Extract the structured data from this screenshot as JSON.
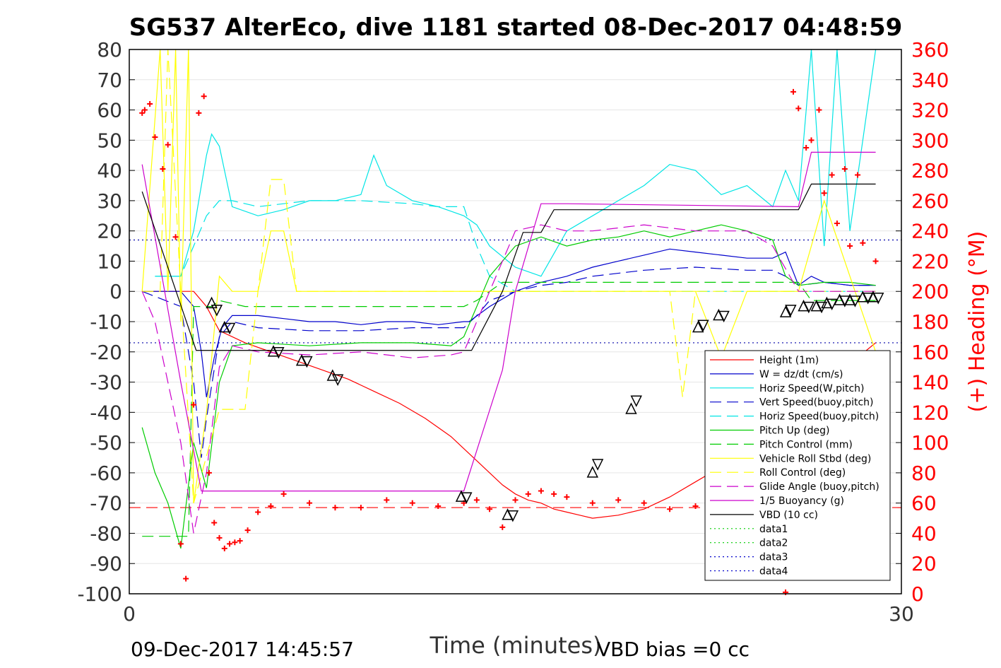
{
  "chart_data": {
    "type": "line",
    "title": "SG537 AlterEco, dive 1181 started 08-Dec-2017 04:48:59",
    "xlabel": "Time (minutes)",
    "ylabel_right": "(+) Heading (°M)",
    "footer_left": "09-Dec-2017 14:45:57",
    "footer_right": "VBD bias =0 cc",
    "xlim": [
      0,
      30
    ],
    "ylim": [
      -100,
      80
    ],
    "ylim_right": [
      0,
      360
    ],
    "x_ticks": [
      0,
      30
    ],
    "y_ticks": [
      80,
      70,
      60,
      50,
      40,
      30,
      20,
      10,
      0,
      -10,
      -20,
      -30,
      -40,
      -50,
      -60,
      -70,
      -80,
      -90,
      -100
    ],
    "y_ticks_right": [
      360,
      340,
      320,
      300,
      280,
      260,
      240,
      220,
      200,
      180,
      160,
      140,
      120,
      100,
      80,
      60,
      40,
      20,
      0
    ],
    "grid": true,
    "legend_position": "bottom-right",
    "reference_lines": [
      17,
      -17
    ],
    "heading_mean": 57,
    "colors": {
      "heading": "#ff0000",
      "right_axis": "#ff0000"
    },
    "series": [
      {
        "name": "Height (1m)",
        "color": "#ff0000",
        "style": "solid",
        "x": [
          0.5,
          2.5,
          3.0,
          3.5,
          4.5,
          5.5,
          6.5,
          7.5,
          8.5,
          9.5,
          10.5,
          11.5,
          12.5,
          13.0,
          13.5,
          14.0,
          14.5,
          15.0,
          15.5,
          16.0,
          16.5,
          17.0,
          17.5,
          18.0,
          19.0,
          20.0,
          21.0,
          22.0,
          23.0,
          24.0,
          25.0,
          26.0,
          27.0,
          28.0,
          29.0
        ],
        "y": [
          0,
          0,
          -5,
          -13,
          -17,
          -20,
          -23,
          -26,
          -29,
          -33,
          -37,
          -42,
          -48,
          -52,
          -56,
          -60,
          -64,
          -67,
          -69,
          -70,
          -72,
          -73,
          -74,
          -75,
          -74,
          -72,
          -68,
          -63,
          -58,
          -52,
          -45,
          -38,
          -31,
          -24,
          -17
        ]
      },
      {
        "name": "W = dz/dt (cm/s)",
        "color": "#0000cc",
        "style": "solid",
        "x": [
          0.5,
          2.0,
          2.5,
          2.8,
          3.0,
          3.3,
          3.6,
          4.0,
          5.0,
          6.0,
          7.0,
          8.0,
          9.0,
          10.0,
          11.0,
          12.0,
          13.0,
          13.2,
          14.0,
          15.0,
          16.0,
          17.0,
          18.0,
          19.0,
          20.0,
          21.0,
          22.0,
          23.0,
          24.0,
          25.0,
          25.5,
          26.0,
          26.5,
          27.0,
          28.0,
          29.0
        ],
        "y": [
          0,
          0,
          -5,
          -20,
          -35,
          -22,
          -12,
          -8,
          -8,
          -9,
          -10,
          -10,
          -11,
          -10,
          -10,
          -11,
          -10,
          -10,
          -5,
          0,
          3,
          5,
          8,
          10,
          12,
          14,
          13,
          12,
          11,
          11,
          13,
          2,
          5,
          3,
          2,
          2
        ]
      },
      {
        "name": "Horiz Speed(W,pitch)",
        "color": "#00e5e5",
        "style": "solid",
        "x": [
          1.0,
          2.0,
          2.5,
          3.0,
          3.2,
          3.5,
          4.0,
          5.0,
          6.0,
          7.0,
          8.0,
          9.0,
          9.5,
          10.0,
          11.0,
          12.0,
          13.0,
          13.5,
          14.0,
          15.0,
          16.0,
          17.0,
          18.0,
          19.0,
          20.0,
          21.0,
          22.0,
          23.0,
          24.0,
          25.0,
          25.5,
          26.0,
          26.5,
          27.0,
          27.5,
          28.0,
          29.0
        ],
        "y": [
          5,
          5,
          20,
          45,
          52,
          48,
          28,
          25,
          27,
          30,
          30,
          32,
          45,
          35,
          30,
          28,
          25,
          22,
          15,
          8,
          5,
          20,
          25,
          30,
          35,
          42,
          40,
          32,
          35,
          28,
          40,
          30,
          80,
          15,
          80,
          20,
          80
        ]
      },
      {
        "name": "Vert Speed(buoy,pitch)",
        "color": "#0000cc",
        "style": "dashed",
        "x": [
          0.5,
          2.0,
          2.5,
          2.8,
          3.0,
          3.5,
          4.0,
          5.0,
          7.0,
          9.0,
          11.0,
          13.0,
          13.5,
          14.0,
          15.0,
          16.0,
          17.0,
          18.0,
          20.0,
          22.0,
          24.0,
          25.0,
          25.5,
          26.0,
          27.0,
          28.0,
          29.0
        ],
        "y": [
          0,
          -5,
          -30,
          -55,
          -42,
          -15,
          -10,
          -12,
          -13,
          -13,
          -12,
          -12,
          -8,
          -3,
          0,
          2,
          3,
          5,
          7,
          8,
          7,
          7,
          5,
          2,
          3,
          2,
          2
        ]
      },
      {
        "name": "Horiz Speed(buoy,pitch)",
        "color": "#00e5e5",
        "style": "dashed",
        "x": [
          1.0,
          2.0,
          2.5,
          3.0,
          3.5,
          4.0,
          5.0,
          7.0,
          9.0,
          11.0,
          12.0,
          13.0,
          13.5,
          14.0,
          15.0,
          16.0,
          17.0,
          18.0,
          20.0,
          22.0,
          24.0,
          25.0,
          26.0,
          27.0,
          28.0,
          29.0
        ],
        "y": [
          5,
          5,
          15,
          25,
          30,
          30,
          28,
          30,
          30,
          29,
          28,
          28,
          15,
          5,
          0,
          0,
          0,
          0,
          0,
          0,
          0,
          0,
          0,
          0,
          0,
          0
        ]
      },
      {
        "name": "Pitch Up (deg)",
        "color": "#00cc00",
        "style": "solid",
        "x": [
          0.5,
          1.0,
          1.5,
          2.0,
          2.5,
          3.0,
          3.5,
          4.0,
          5.0,
          7.0,
          9.0,
          11.0,
          12.5,
          13.0,
          13.5,
          14.0,
          15.0,
          16.0,
          17.0,
          18.0,
          19.0,
          20.0,
          21.0,
          22.0,
          23.0,
          24.0,
          25.0,
          25.5,
          26.0,
          27.0,
          28.0,
          29.0
        ],
        "y": [
          -45,
          -60,
          -70,
          -85,
          -50,
          -65,
          -30,
          -18,
          -17,
          -18,
          -17,
          -17,
          -18,
          -15,
          -5,
          5,
          15,
          18,
          15,
          17,
          18,
          20,
          18,
          20,
          22,
          20,
          17,
          5,
          2,
          3,
          3,
          2
        ]
      },
      {
        "name": "Pitch Control (mm)",
        "color": "#00cc00",
        "style": "dashed",
        "x": [
          0.5,
          2.3,
          2.5,
          3.2,
          3.5,
          4.5,
          13.0,
          13.5,
          14.5,
          26.0,
          26.5,
          29.0
        ],
        "y": [
          -81,
          -81,
          -5,
          -5,
          -3,
          -5,
          -5,
          -3,
          3,
          3,
          -3,
          -3
        ]
      },
      {
        "name": "Vehicle Roll Stbd (deg)",
        "color": "#ffff00",
        "style": "solid",
        "x": [
          0.5,
          1.2,
          1.5,
          1.8,
          2.0,
          2.3,
          2.5,
          3.0,
          3.5,
          4.0,
          5.0,
          5.5,
          6.0,
          6.5,
          7.0,
          8.0,
          9.0,
          10.0,
          11.0,
          12.0,
          13.0,
          14.0,
          15.0,
          16.0,
          17.0,
          18.0,
          19.0,
          20.0,
          21.0,
          22.0,
          23.0,
          24.0,
          25.0,
          26.0,
          27.0,
          28.0,
          29.0
        ],
        "y": [
          0,
          80,
          0,
          80,
          -10,
          80,
          -70,
          -40,
          5,
          0,
          0,
          20,
          20,
          0,
          0,
          0,
          0,
          0,
          0,
          0,
          0,
          0,
          0,
          0,
          0,
          0,
          0,
          0,
          0,
          0,
          -22,
          0,
          0,
          0,
          30,
          5,
          -20
        ]
      },
      {
        "name": "Roll Control (deg)",
        "color": "#ffff00",
        "style": "dashed",
        "x": [
          0.5,
          1.2,
          1.5,
          2.0,
          2.5,
          3.5,
          4.5,
          5.0,
          5.5,
          6.0,
          6.5,
          7.0,
          14.0,
          20.0,
          21.0,
          21.5,
          22.0,
          27.0,
          28.0,
          29.0
        ],
        "y": [
          0,
          0,
          80,
          0,
          -70,
          -39,
          -39,
          0,
          37,
          37,
          0,
          0,
          0,
          0,
          0,
          -35,
          0,
          0,
          0,
          0
        ]
      },
      {
        "name": "Glide Angle (buoy,pitch)",
        "color": "#cc00cc",
        "style": "dashed",
        "x": [
          0.5,
          1.0,
          2.0,
          2.5,
          3.0,
          3.5,
          4.0,
          5.0,
          7.0,
          9.0,
          11.0,
          12.5,
          13.0,
          14.0,
          15.0,
          16.0,
          17.0,
          18.0,
          20.0,
          22.0,
          24.0,
          25.0,
          26.0,
          27.0,
          28.0,
          29.0
        ],
        "y": [
          0,
          -10,
          -50,
          -80,
          -60,
          -25,
          -18,
          -20,
          -21,
          -20,
          -22,
          -21,
          -20,
          0,
          20,
          22,
          20,
          20,
          22,
          20,
          20,
          15,
          0,
          0,
          0,
          0
        ]
      },
      {
        "name": "1/5 Buoyancy (g)",
        "color": "#cc00cc",
        "style": "solid",
        "x": [
          0.5,
          2.0,
          2.8,
          3.0,
          13.0,
          14.5,
          15.0,
          16.0,
          17.0,
          26.0,
          26.5,
          29.0
        ],
        "y": [
          42,
          -30,
          -66,
          -66,
          -66,
          -26,
          0,
          29,
          29,
          28,
          46,
          46
        ]
      },
      {
        "name": "VBD (10 cc)",
        "color": "#000000",
        "style": "solid",
        "x": [
          0.5,
          2.6,
          3.5,
          4.0,
          13.0,
          13.3,
          14.5,
          15.3,
          16.0,
          16.5,
          17.0,
          26.0,
          26.5,
          29.0
        ],
        "y": [
          33,
          -19.5,
          -19.5,
          -19.5,
          -19.5,
          -19.5,
          0,
          19.5,
          19.5,
          27,
          27,
          27,
          35.5,
          35.5
        ]
      },
      {
        "name": "data1",
        "color": "#00cc00",
        "style": "dotted",
        "x": [],
        "y": []
      },
      {
        "name": "data2",
        "color": "#00cc00",
        "style": "dotted",
        "x": [],
        "y": []
      },
      {
        "name": "data3",
        "color": "#0000cc",
        "style": "dotted",
        "x": [],
        "y": []
      },
      {
        "name": "data4",
        "color": "#0000cc",
        "style": "dotted",
        "x": [],
        "y": []
      }
    ],
    "heading_points": {
      "x": [
        0.5,
        0.6,
        0.8,
        1.0,
        1.3,
        1.5,
        1.8,
        2.0,
        2.2,
        2.5,
        2.7,
        2.9,
        3.1,
        3.3,
        3.5,
        3.7,
        3.9,
        4.1,
        4.3,
        4.6,
        5.0,
        5.5,
        6.0,
        7.0,
        8.0,
        9.0,
        10.0,
        11.0,
        12.0,
        13.0,
        13.5,
        14.0,
        14.5,
        15.0,
        15.5,
        16.0,
        16.5,
        17.0,
        18.0,
        19.0,
        20.0,
        21.0,
        22.0,
        23.0,
        24.0,
        25.0,
        25.5,
        25.8,
        26.0,
        26.3,
        26.5,
        26.8,
        27.0,
        27.3,
        27.5,
        27.8,
        28.0,
        28.3,
        28.5,
        29.0
      ],
      "y": [
        318,
        320,
        324,
        302,
        281,
        297,
        236,
        33,
        10,
        125,
        318,
        329,
        80,
        47,
        37,
        30,
        33,
        34,
        35,
        42,
        54,
        58,
        66,
        60,
        57,
        57,
        62,
        60,
        58,
        60,
        62,
        56,
        44,
        62,
        66,
        68,
        66,
        64,
        60,
        62,
        60,
        56,
        58,
        56,
        54,
        50,
        1,
        332,
        321,
        295,
        300,
        320,
        265,
        277,
        245,
        281,
        230,
        277,
        232,
        220
      ]
    },
    "markers": {
      "x": [
        3.2,
        3.4,
        3.7,
        3.9,
        5.6,
        5.8,
        6.7,
        6.9,
        7.9,
        8.1,
        12.9,
        13.1,
        14.7,
        14.9,
        18.0,
        18.2,
        19.5,
        19.7,
        22.1,
        22.3,
        22.9,
        23.1,
        25.5,
        25.7,
        26.2,
        26.4,
        26.7,
        26.9,
        27.1,
        27.3,
        27.6,
        27.8,
        28.0,
        28.2,
        28.5,
        28.7,
        28.9,
        29.1
      ],
      "y": [
        -4,
        -6,
        -12,
        -12,
        -20,
        -20,
        -23,
        -23,
        -28,
        -29,
        -68,
        -68,
        -74,
        -74,
        -60,
        -57,
        -39,
        -36,
        -12,
        -11,
        -8,
        -8,
        -7,
        -6,
        -5,
        -5,
        -5,
        -5,
        -4,
        -4,
        -3,
        -3,
        -3,
        -3,
        -2,
        -2,
        -2,
        -2
      ]
    }
  }
}
